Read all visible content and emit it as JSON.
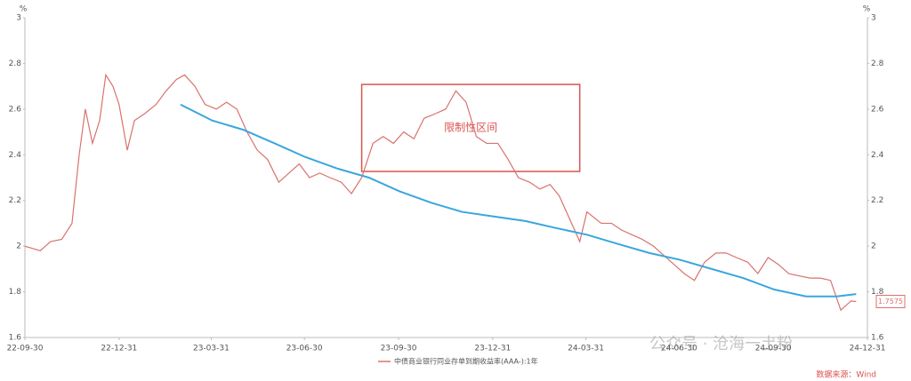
{
  "chart_data": {
    "type": "line",
    "y_label": "%",
    "y2_label": "%",
    "xlim": [
      "22-09-30",
      "24-12-31"
    ],
    "xticks": [
      "22-09-30",
      "22-12-31",
      "23-03-31",
      "23-06-30",
      "23-09-30",
      "23-12-31",
      "24-03-31",
      "24-06-30",
      "24-09-30",
      "24-12-31"
    ],
    "ylim": [
      1.6,
      3
    ],
    "yticks": [
      1.6,
      1.8,
      2,
      2.2,
      2.4,
      2.6,
      2.8,
      3
    ],
    "y2lim": [
      1.6,
      3
    ],
    "y2ticks": [
      1.6,
      1.8,
      2,
      2.2,
      2.4,
      2.6,
      2.8,
      3
    ],
    "grid": false,
    "legend": "bottom",
    "series": [
      {
        "name": "中债商业银行同业存单到期收益率(AAA-):1年",
        "color": "#d9726d",
        "x": [
          "22-09-30",
          "22-10-15",
          "22-10-25",
          "22-11-05",
          "22-11-15",
          "22-11-22",
          "22-11-28",
          "22-12-05",
          "22-12-12",
          "22-12-18",
          "22-12-25",
          "22-12-31",
          "23-01-08",
          "23-01-15",
          "23-01-25",
          "23-02-05",
          "23-02-15",
          "23-02-25",
          "23-03-05",
          "23-03-15",
          "23-03-25",
          "23-04-05",
          "23-04-15",
          "23-04-25",
          "23-05-05",
          "23-05-15",
          "23-05-25",
          "23-06-05",
          "23-06-15",
          "23-06-25",
          "23-07-05",
          "23-07-15",
          "23-07-25",
          "23-08-05",
          "23-08-15",
          "23-08-25",
          "23-09-05",
          "23-09-15",
          "23-09-25",
          "23-10-05",
          "23-10-15",
          "23-10-25",
          "23-11-05",
          "23-11-15",
          "23-11-25",
          "23-12-05",
          "23-12-15",
          "23-12-25",
          "24-01-05",
          "24-01-15",
          "24-01-25",
          "24-02-05",
          "24-02-15",
          "24-02-25",
          "24-03-05",
          "24-03-15",
          "24-03-25",
          "24-04-01",
          "24-04-15",
          "24-04-25",
          "24-05-05",
          "24-05-15",
          "24-05-25",
          "24-06-05",
          "24-06-15",
          "24-06-25",
          "24-07-05",
          "24-07-15",
          "24-07-25",
          "24-08-05",
          "24-08-15",
          "24-08-25",
          "24-09-05",
          "24-09-15",
          "24-09-25",
          "24-10-05",
          "24-10-15",
          "24-10-25",
          "24-11-05",
          "24-11-15",
          "24-11-25",
          "24-12-05",
          "24-12-15",
          "24-12-20"
        ],
        "values": [
          2.0,
          1.98,
          2.02,
          2.03,
          2.1,
          2.4,
          2.6,
          2.45,
          2.55,
          2.75,
          2.7,
          2.62,
          2.42,
          2.55,
          2.58,
          2.62,
          2.68,
          2.73,
          2.75,
          2.7,
          2.62,
          2.6,
          2.63,
          2.6,
          2.5,
          2.42,
          2.38,
          2.28,
          2.32,
          2.36,
          2.3,
          2.32,
          2.3,
          2.28,
          2.23,
          2.3,
          2.45,
          2.48,
          2.45,
          2.5,
          2.47,
          2.56,
          2.58,
          2.6,
          2.68,
          2.63,
          2.48,
          2.45,
          2.45,
          2.38,
          2.3,
          2.28,
          2.25,
          2.27,
          2.22,
          2.12,
          2.02,
          2.15,
          2.1,
          2.1,
          2.07,
          2.05,
          2.03,
          2.0,
          1.96,
          1.92,
          1.88,
          1.85,
          1.93,
          1.97,
          1.97,
          1.95,
          1.93,
          1.88,
          1.95,
          1.92,
          1.88,
          1.87,
          1.86,
          1.86,
          1.85,
          1.72,
          1.76,
          1.7575
        ]
      },
      {
        "color": "#3aa6dd",
        "x": [
          "23-03-01",
          "23-04-01",
          "23-05-01",
          "23-06-01",
          "23-07-01",
          "23-08-01",
          "23-09-01",
          "23-10-01",
          "23-11-01",
          "23-12-01",
          "24-01-01",
          "24-02-01",
          "24-03-01",
          "24-04-01",
          "24-05-01",
          "24-06-01",
          "24-07-01",
          "24-08-01",
          "24-09-01",
          "24-10-01",
          "24-11-01",
          "24-12-01",
          "24-12-20"
        ],
        "values": [
          2.62,
          2.55,
          2.51,
          2.45,
          2.39,
          2.34,
          2.3,
          2.24,
          2.19,
          2.15,
          2.13,
          2.11,
          2.08,
          2.05,
          2.01,
          1.97,
          1.94,
          1.9,
          1.86,
          1.81,
          1.78,
          1.78,
          1.79
        ]
      }
    ],
    "annotation": {
      "label": "限制性区间",
      "x": [
        "23-08-25",
        "24-03-25"
      ],
      "y": [
        2.327,
        2.708
      ],
      "color": "#d9534f"
    },
    "source": "数据来源：Wind",
    "watermark": "公众号 · 沧海一土粉"
  }
}
